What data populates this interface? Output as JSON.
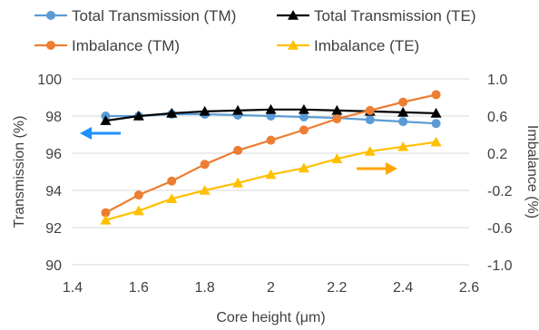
{
  "chart_data": {
    "type": "line",
    "title": "",
    "xlabel": "Core height (μm)",
    "ylabel_left": "Transmission (%)",
    "ylabel_right": "Imbalance (%)",
    "xlim": [
      1.4,
      2.6
    ],
    "ylim_left": [
      90,
      100
    ],
    "ylim_right": [
      -1.0,
      1.0
    ],
    "x_ticks": [
      "1.4",
      "1.6",
      "1.8",
      "2",
      "2.2",
      "2.4",
      "2.6"
    ],
    "y_left_ticks": [
      "90",
      "92",
      "94",
      "96",
      "98",
      "100"
    ],
    "y_right_ticks": [
      "-1.0",
      "-0.6",
      "-0.2",
      "0.2",
      "0.6",
      "1.0"
    ],
    "grid": true,
    "legend_position": "top",
    "x": [
      1.5,
      1.6,
      1.7,
      1.8,
      1.9,
      2.0,
      2.1,
      2.2,
      2.3,
      2.4,
      2.5
    ],
    "series": [
      {
        "name": "Total Transmission (TM)",
        "axis": "left",
        "color": "#5B9BD5",
        "marker": "circle",
        "values": [
          98.0,
          98.0,
          98.1,
          98.1,
          98.05,
          98.0,
          97.95,
          97.9,
          97.8,
          97.7,
          97.6
        ]
      },
      {
        "name": "Total Transmission (TE)",
        "axis": "left",
        "color": "#000000",
        "marker": "triangle",
        "values": [
          97.75,
          98.0,
          98.15,
          98.25,
          98.3,
          98.35,
          98.35,
          98.3,
          98.25,
          98.2,
          98.15
        ]
      },
      {
        "name": "Imbalance (TM)",
        "axis": "right",
        "color": "#ED7D31",
        "marker": "circle",
        "values": [
          -0.44,
          -0.25,
          -0.1,
          0.08,
          0.23,
          0.34,
          0.45,
          0.57,
          0.66,
          0.75,
          0.83
        ]
      },
      {
        "name": "Imbalance (TE)",
        "axis": "right",
        "color": "#FFC000",
        "marker": "triangle",
        "values": [
          -0.52,
          -0.42,
          -0.29,
          -0.2,
          -0.12,
          -0.03,
          0.04,
          0.14,
          0.22,
          0.27,
          0.32
        ]
      }
    ],
    "annotations": [
      {
        "type": "arrow",
        "direction": "left",
        "color": "#1E90FF",
        "meaning": "left axis"
      },
      {
        "type": "arrow",
        "direction": "right",
        "color": "#FFA500",
        "meaning": "right axis"
      }
    ]
  }
}
